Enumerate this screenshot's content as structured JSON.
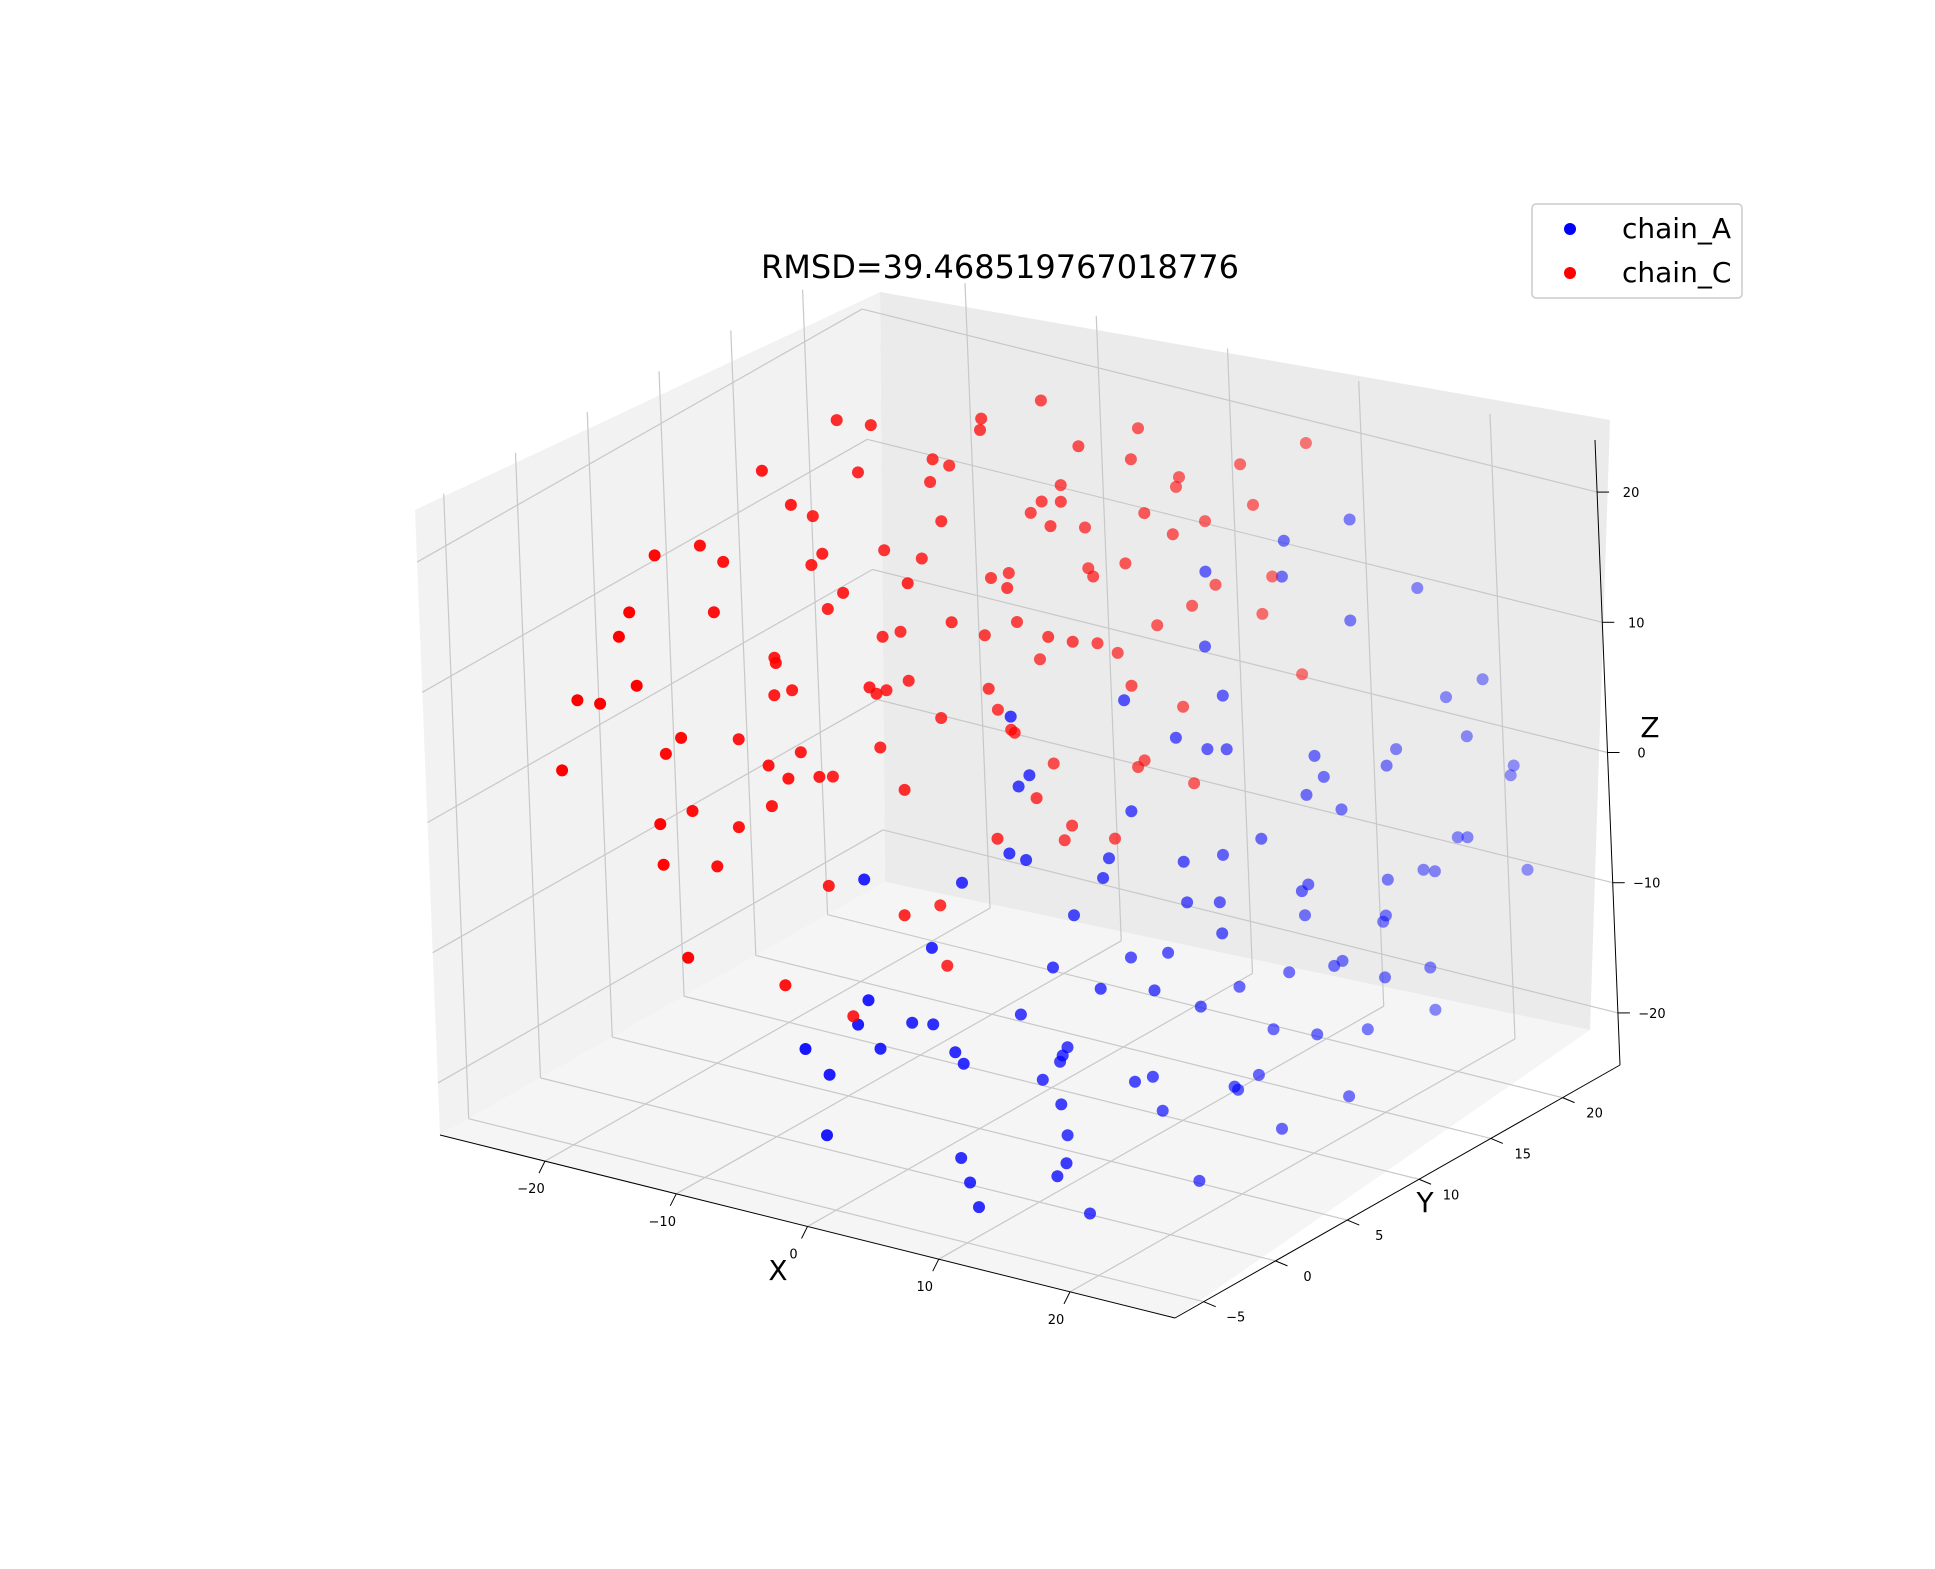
{
  "chart_data": {
    "type": "scatter",
    "projection": "3d",
    "title": "RMSD=39.468519767018776",
    "xlabel": "X",
    "ylabel": "Y",
    "zlabel": "Z",
    "xlim": [
      -28,
      28
    ],
    "ylim": [
      -7,
      24
    ],
    "zlim": [
      -24,
      24
    ],
    "x_ticks": [
      -20,
      -10,
      0,
      10,
      20
    ],
    "y_ticks": [
      -5,
      0,
      5,
      10,
      15,
      20
    ],
    "z_ticks": [
      -20,
      -10,
      0,
      10,
      20
    ],
    "grid": true,
    "legend_position": "top-right",
    "series": [
      {
        "name": "chain_A",
        "color": "#0000ff",
        "points": [
          [
            -3,
            -4,
            -13
          ],
          [
            -4,
            2,
            -17
          ],
          [
            2,
            -4,
            -8
          ],
          [
            0,
            -3,
            -11
          ],
          [
            4,
            0,
            -14
          ],
          [
            -2,
            4,
            -10
          ],
          [
            8,
            -3,
            -12
          ],
          [
            10,
            2,
            -14
          ],
          [
            12,
            0,
            -16
          ],
          [
            5,
            6,
            -11
          ],
          [
            15,
            4,
            -9
          ],
          [
            18,
            1,
            -13
          ],
          [
            20,
            -2,
            -11
          ],
          [
            14,
            8,
            -13
          ],
          [
            22,
            3,
            -14
          ],
          [
            16,
            -4,
            -18
          ],
          [
            19,
            -6,
            -15
          ],
          [
            11,
            10,
            -7
          ],
          [
            24,
            7,
            -12
          ],
          [
            21,
            11,
            -10
          ],
          [
            17,
            13,
            -6
          ],
          [
            9,
            14,
            -10
          ],
          [
            6,
            17,
            -9
          ],
          [
            13,
            19,
            -5
          ],
          [
            23,
            18,
            -4
          ],
          [
            26,
            16,
            -2
          ],
          [
            25,
            20,
            0
          ],
          [
            18,
            22,
            3
          ],
          [
            12,
            21,
            8
          ],
          [
            8,
            20,
            11
          ],
          [
            22,
            21,
            6
          ],
          [
            15,
            23,
            10
          ],
          [
            3,
            19,
            5
          ],
          [
            0,
            16,
            2
          ],
          [
            -3,
            12,
            -2
          ],
          [
            1,
            8,
            -5
          ],
          [
            7,
            10,
            -1
          ],
          [
            10,
            14,
            2
          ],
          [
            14,
            17,
            -1
          ],
          [
            20,
            19,
            -8
          ],
          [
            24,
            12,
            -6
          ],
          [
            26,
            10,
            -9
          ],
          [
            17,
            18,
            -12
          ],
          [
            11,
            18,
            -13
          ],
          [
            6,
            13,
            -14
          ],
          [
            2,
            14,
            -16
          ],
          [
            -1,
            9,
            -18
          ],
          [
            5,
            5,
            -19
          ],
          [
            9,
            3,
            -21
          ],
          [
            13,
            6,
            -20
          ],
          [
            16,
            10,
            -19
          ],
          [
            20,
            14,
            -17
          ],
          [
            23,
            16,
            -16
          ],
          [
            -6,
            6,
            -18
          ],
          [
            -8,
            2,
            -20
          ],
          [
            -5,
            -1,
            -22
          ],
          [
            3,
            1,
            -23
          ],
          [
            7,
            -2,
            -22
          ],
          [
            11,
            -5,
            -21
          ],
          [
            15,
            -1,
            -23
          ],
          [
            19,
            3,
            -22
          ],
          [
            21,
            7,
            -20
          ],
          [
            4,
            11,
            -6
          ],
          [
            8,
            7,
            -4
          ],
          [
            12,
            9,
            -3
          ],
          [
            16,
            14,
            0
          ],
          [
            20,
            16,
            2
          ],
          [
            24,
            18,
            4
          ],
          [
            6,
            22,
            12
          ],
          [
            10,
            23,
            14
          ],
          [
            14,
            22,
            -2
          ],
          [
            18,
            20,
            -9
          ],
          [
            2,
            6,
            -3
          ],
          [
            -2,
            10,
            4
          ],
          [
            22,
            14,
            -5
          ],
          [
            -4,
            8,
            -8
          ],
          [
            0,
            12,
            -12
          ],
          [
            5,
            15,
            1
          ],
          [
            9,
            17,
            -7
          ],
          [
            13,
            15,
            -15
          ],
          [
            17,
            7,
            -6
          ],
          [
            21,
            9,
            -3
          ],
          [
            25,
            14,
            -11
          ],
          [
            -7,
            4,
            -6
          ],
          [
            19,
            12,
            5
          ],
          [
            23,
            22,
            -1
          ],
          [
            -1,
            3,
            -15
          ],
          [
            15,
            12,
            -17
          ],
          [
            11,
            13,
            7
          ],
          [
            7,
            5,
            -16
          ],
          [
            3,
            8,
            -20
          ],
          [
            26,
            20,
            -7
          ],
          [
            12,
            3,
            -9
          ],
          [
            16,
            16,
            -14
          ],
          [
            -5,
            13,
            -4
          ],
          [
            1,
            21,
            9
          ],
          [
            8,
            16,
            -18
          ],
          [
            20,
            5,
            -16
          ],
          [
            24,
            9,
            -18
          ],
          [
            4,
            18,
            -2
          ]
        ]
      },
      {
        "name": "chain_C",
        "color": "#ff0000",
        "points": [
          [
            -20,
            -2,
            8
          ],
          [
            -22,
            2,
            12
          ],
          [
            -18,
            5,
            15
          ],
          [
            -15,
            -1,
            6
          ],
          [
            -12,
            3,
            10
          ],
          [
            -10,
            6,
            14
          ],
          [
            -16,
            8,
            18
          ],
          [
            -8,
            0,
            4
          ],
          [
            -6,
            4,
            9
          ],
          [
            -13,
            10,
            20
          ],
          [
            -9,
            12,
            16
          ],
          [
            -4,
            8,
            12
          ],
          [
            -2,
            14,
            18
          ],
          [
            -18,
            0,
            -2
          ],
          [
            -14,
            4,
            1
          ],
          [
            -10,
            8,
            5
          ],
          [
            -6,
            12,
            8
          ],
          [
            -2,
            16,
            11
          ],
          [
            2,
            18,
            14
          ],
          [
            6,
            20,
            16
          ],
          [
            -20,
            4,
            -4
          ],
          [
            -16,
            8,
            -1
          ],
          [
            -12,
            12,
            3
          ],
          [
            -8,
            16,
            6
          ],
          [
            -4,
            20,
            9
          ],
          [
            0,
            22,
            12
          ],
          [
            4,
            21,
            18
          ],
          [
            8,
            22,
            20
          ],
          [
            -22,
            -3,
            3
          ],
          [
            -19,
            1,
            -6
          ],
          [
            -15,
            5,
            -3
          ],
          [
            -11,
            9,
            0
          ],
          [
            -7,
            13,
            3
          ],
          [
            -3,
            17,
            5
          ],
          [
            1,
            20,
            7
          ],
          [
            5,
            22,
            9
          ],
          [
            -24,
            0,
            6
          ],
          [
            -21,
            3,
            16
          ],
          [
            -17,
            7,
            21
          ],
          [
            -13,
            11,
            23
          ],
          [
            -9,
            15,
            22
          ],
          [
            -5,
            18,
            19
          ],
          [
            -1,
            21,
            15
          ],
          [
            3,
            23,
            5
          ],
          [
            7,
            22,
            2
          ],
          [
            -20,
            6,
            10
          ],
          [
            -16,
            10,
            13
          ],
          [
            -12,
            14,
            17
          ],
          [
            -8,
            18,
            14
          ],
          [
            -4,
            22,
            3
          ],
          [
            0,
            20,
            -1
          ],
          [
            4,
            17,
            -4
          ],
          [
            -18,
            12,
            7
          ],
          [
            -14,
            15,
            10
          ],
          [
            -10,
            19,
            12
          ],
          [
            -6,
            21,
            1
          ],
          [
            -2,
            19,
            -5
          ],
          [
            2,
            15,
            -2
          ],
          [
            -23,
            5,
            -1
          ],
          [
            -19,
            9,
            2
          ],
          [
            -15,
            13,
            5
          ],
          [
            -11,
            17,
            8
          ],
          [
            -7,
            20,
            11
          ],
          [
            -3,
            23,
            14
          ],
          [
            1,
            17,
            16
          ],
          [
            -21,
            8,
            -8
          ],
          [
            -17,
            11,
            -5
          ],
          [
            -13,
            15,
            -2
          ],
          [
            -9,
            19,
            -7
          ],
          [
            -5,
            16,
            -10
          ],
          [
            -1,
            13,
            -6
          ],
          [
            -24,
            3,
            9
          ],
          [
            -20,
            10,
            4
          ],
          [
            -16,
            14,
            0
          ],
          [
            -12,
            18,
            -3
          ],
          [
            -8,
            21,
            7
          ],
          [
            -4,
            15,
            15
          ],
          [
            0,
            11,
            10
          ],
          [
            4,
            13,
            6
          ],
          [
            -22,
            7,
            14
          ],
          [
            -18,
            11,
            11
          ],
          [
            -14,
            16,
            17
          ],
          [
            -10,
            20,
            20
          ],
          [
            -6,
            23,
            17
          ],
          [
            -2,
            10,
            3
          ],
          [
            2,
            8,
            0
          ],
          [
            -16,
            2,
            -6
          ],
          [
            -12,
            6,
            -9
          ],
          [
            -8,
            10,
            -12
          ],
          [
            -4,
            4,
            -8
          ],
          [
            0,
            7,
            -3
          ],
          [
            -19,
            14,
            20
          ],
          [
            -15,
            18,
            15
          ],
          [
            -11,
            22,
            12
          ],
          [
            -7,
            7,
            -1
          ],
          [
            -3,
            11,
            13
          ],
          [
            -21,
            12,
            0
          ],
          [
            -17,
            16,
            3
          ],
          [
            -13,
            20,
            6
          ],
          [
            -9,
            3,
            2
          ],
          [
            -5,
            6,
            16
          ],
          [
            -1,
            18,
            19
          ],
          [
            3,
            10,
            11
          ],
          [
            -23,
            10,
            -3
          ],
          [
            -14,
            -2,
            -10
          ],
          [
            -10,
            1,
            -13
          ],
          [
            -6,
            2,
            -15
          ],
          [
            -2,
            5,
            -12
          ],
          [
            -18,
            16,
            9
          ],
          [
            -12,
            21,
            -1
          ],
          [
            -8,
            14,
            22
          ],
          [
            -4,
            12,
            1
          ],
          [
            0,
            15,
            -8
          ],
          [
            4,
            19,
            10
          ],
          [
            -20,
            13,
            13
          ],
          [
            -16,
            -3,
            11
          ]
        ]
      }
    ]
  }
}
